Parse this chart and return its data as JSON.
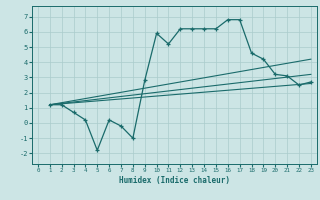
{
  "title": "",
  "xlabel": "Humidex (Indice chaleur)",
  "ylabel": "",
  "bg_color": "#cce5e5",
  "grid_color": "#aacccc",
  "line_color": "#1a6b6b",
  "xlim": [
    -0.5,
    23.5
  ],
  "ylim": [
    -2.7,
    7.7
  ],
  "xticks": [
    0,
    1,
    2,
    3,
    4,
    5,
    6,
    7,
    8,
    9,
    10,
    11,
    12,
    13,
    14,
    15,
    16,
    17,
    18,
    19,
    20,
    21,
    22,
    23
  ],
  "yticks": [
    -2,
    -1,
    0,
    1,
    2,
    3,
    4,
    5,
    6,
    7
  ],
  "zigzag_x": [
    1,
    2,
    3,
    4,
    5,
    6,
    7,
    8,
    9,
    10,
    11,
    12,
    13,
    14,
    15,
    16,
    17,
    18,
    19,
    20,
    21,
    22,
    23
  ],
  "zigzag_y": [
    1.2,
    1.2,
    0.7,
    0.2,
    -1.8,
    0.2,
    -0.2,
    -1.0,
    2.8,
    5.9,
    5.2,
    6.2,
    6.2,
    6.2,
    6.2,
    6.8,
    6.8,
    4.6,
    4.2,
    3.2,
    3.1,
    2.5,
    2.7
  ],
  "trend1_x": [
    1,
    23
  ],
  "trend1_y": [
    1.2,
    4.2
  ],
  "trend2_x": [
    1,
    23
  ],
  "trend2_y": [
    1.2,
    2.6
  ],
  "trend3_x": [
    1,
    23
  ],
  "trend3_y": [
    1.2,
    3.2
  ]
}
